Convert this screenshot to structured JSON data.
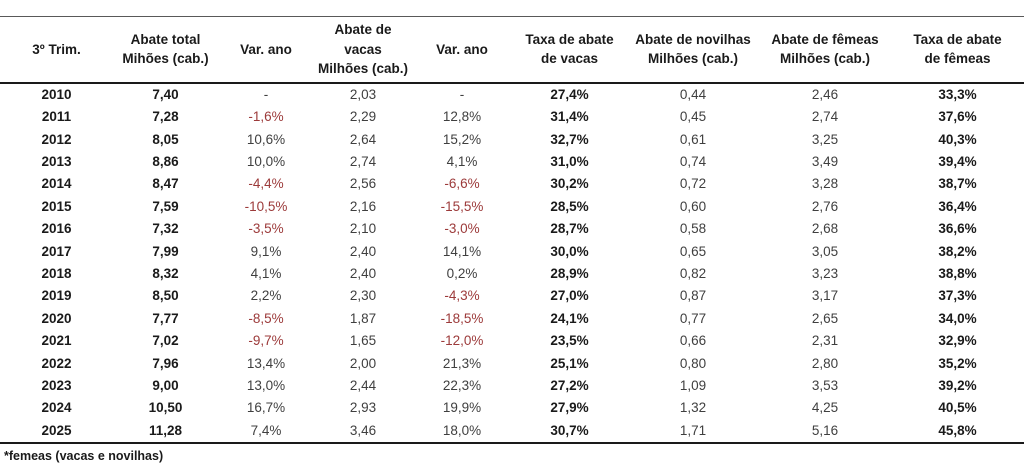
{
  "chart_data": {
    "type": "table",
    "period_label": "3º Trim.",
    "columns": [
      {
        "id": "trimestre-ano",
        "lines": [
          "3º Trim."
        ]
      },
      {
        "id": "abate-total",
        "lines": [
          "Abate total",
          "Mihões (cab.)"
        ]
      },
      {
        "id": "var-ano-total",
        "lines": [
          "Var. ano"
        ]
      },
      {
        "id": "abate-de-vacas",
        "lines": [
          "Abate de vacas",
          "Milhões (cab.)"
        ]
      },
      {
        "id": "var-ano-vacas",
        "lines": [
          "Var. ano"
        ]
      },
      {
        "id": "taxa-de-abate-de-vacas",
        "lines": [
          "Taxa de abate",
          "de vacas"
        ]
      },
      {
        "id": "abate-de-novilhas",
        "lines": [
          "Abate de novilhas",
          "Milhões (cab.)"
        ]
      },
      {
        "id": "abate-de-femeas",
        "lines": [
          "Abate de fêmeas",
          "Milhões (cab.)"
        ]
      },
      {
        "id": "taxa-de-abate-de-femeas",
        "lines": [
          "Taxa de abate",
          "de fêmeas"
        ]
      }
    ],
    "rows": [
      [
        "2010",
        "7,40",
        "-",
        "2,03",
        "-",
        "27,4%",
        "0,44",
        "2,46",
        "33,3%"
      ],
      [
        "2011",
        "7,28",
        "-1,6%",
        "2,29",
        "12,8%",
        "31,4%",
        "0,45",
        "2,74",
        "37,6%"
      ],
      [
        "2012",
        "8,05",
        "10,6%",
        "2,64",
        "15,2%",
        "32,7%",
        "0,61",
        "3,25",
        "40,3%"
      ],
      [
        "2013",
        "8,86",
        "10,0%",
        "2,74",
        "4,1%",
        "31,0%",
        "0,74",
        "3,49",
        "39,4%"
      ],
      [
        "2014",
        "8,47",
        "-4,4%",
        "2,56",
        "-6,6%",
        "30,2%",
        "0,72",
        "3,28",
        "38,7%"
      ],
      [
        "2015",
        "7,59",
        "-10,5%",
        "2,16",
        "-15,5%",
        "28,5%",
        "0,60",
        "2,76",
        "36,4%"
      ],
      [
        "2016",
        "7,32",
        "-3,5%",
        "2,10",
        "-3,0%",
        "28,7%",
        "0,58",
        "2,68",
        "36,6%"
      ],
      [
        "2017",
        "7,99",
        "9,1%",
        "2,40",
        "14,1%",
        "30,0%",
        "0,65",
        "3,05",
        "38,2%"
      ],
      [
        "2018",
        "8,32",
        "4,1%",
        "2,40",
        "0,2%",
        "28,9%",
        "0,82",
        "3,23",
        "38,8%"
      ],
      [
        "2019",
        "8,50",
        "2,2%",
        "2,30",
        "-4,3%",
        "27,0%",
        "0,87",
        "3,17",
        "37,3%"
      ],
      [
        "2020",
        "7,77",
        "-8,5%",
        "1,87",
        "-18,5%",
        "24,1%",
        "0,77",
        "2,65",
        "34,0%"
      ],
      [
        "2021",
        "7,02",
        "-9,7%",
        "1,65",
        "-12,0%",
        "23,5%",
        "0,66",
        "2,31",
        "32,9%"
      ],
      [
        "2022",
        "7,96",
        "13,4%",
        "2,00",
        "21,3%",
        "25,1%",
        "0,80",
        "2,80",
        "35,2%"
      ],
      [
        "2023",
        "9,00",
        "13,0%",
        "2,44",
        "22,3%",
        "27,2%",
        "1,09",
        "3,53",
        "39,2%"
      ],
      [
        "2024",
        "10,50",
        "16,7%",
        "2,93",
        "19,9%",
        "27,9%",
        "1,32",
        "4,25",
        "40,5%"
      ],
      [
        "2025",
        "11,28",
        "7,4%",
        "3,46",
        "18,0%",
        "30,7%",
        "1,71",
        "5,16",
        "45,8%"
      ]
    ],
    "footnote": "*femeas (vacas e novilhas)",
    "colors": {
      "bold_text": "#1a1a1a",
      "regular_text": "#3f3f3f",
      "negative_value": "#9c3a3a",
      "rule_line": "#1a1a1a"
    }
  }
}
